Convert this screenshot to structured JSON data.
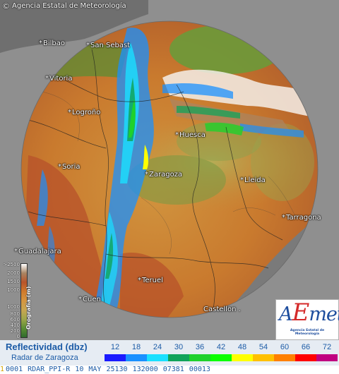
{
  "header": {
    "copyright_symbol": "©",
    "agency": "Agencia Estatal de Meteorología"
  },
  "cities": [
    {
      "key": "bilbao",
      "label": "Bilbao"
    },
    {
      "key": "san-sebastian",
      "label": "San Sebast"
    },
    {
      "key": "vitoria",
      "label": "Vitoria"
    },
    {
      "key": "logrono",
      "label": "Logroño"
    },
    {
      "key": "huesca",
      "label": "Huesca"
    },
    {
      "key": "soria",
      "label": "Soria"
    },
    {
      "key": "zaragoza",
      "label": "Zaragoza"
    },
    {
      "key": "lleida",
      "label": "Lleida"
    },
    {
      "key": "tarragona",
      "label": "Tarragona"
    },
    {
      "key": "guadalajara",
      "label": "Guadalajara"
    },
    {
      "key": "teruel",
      "label": "Teruel"
    },
    {
      "key": "cuenca",
      "label": "Cuen"
    },
    {
      "key": "castellon",
      "label": "Castellon ."
    }
  ],
  "altitude_legend": {
    "title": "Orografía (m)",
    "ticks": [
      ">2500",
      "2000",
      "1500",
      "1000",
      "800",
      "600",
      "400",
      "200",
      "0"
    ],
    "colors": [
      "#ffffff",
      "#a98563",
      "#b8542a",
      "#cf7a2c",
      "#d69540",
      "#c9a651",
      "#9fa64a",
      "#5c8e34",
      "#2f6b2d"
    ]
  },
  "logo": {
    "wordmark_a": "A",
    "wordmark_e": "E",
    "wordmark_rest": "met",
    "subtitle": "Agencia Estatal de Meteorología"
  },
  "reflectivity_legend": {
    "title": "Reflectividad (dbz)",
    "subtitle": "Radar de Zaragoza",
    "levels": [
      {
        "value": "12",
        "color": "#1a1aff"
      },
      {
        "value": "18",
        "color": "#1990ff"
      },
      {
        "value": "24",
        "color": "#1ae0ff"
      },
      {
        "value": "30",
        "color": "#11a35a"
      },
      {
        "value": "36",
        "color": "#1fd12c"
      },
      {
        "value": "42",
        "color": "#0bff00"
      },
      {
        "value": "48",
        "color": "#ffff00"
      },
      {
        "value": "54",
        "color": "#ffc000"
      },
      {
        "value": "60",
        "color": "#ff8000"
      },
      {
        "value": "66",
        "color": "#ff0000"
      },
      {
        "value": "72",
        "color": "#c00080"
      }
    ]
  },
  "status": {
    "lead": "1",
    "id": "0001",
    "product": "RDAR_PPI-R",
    "day": "10",
    "month": "MAY",
    "code": "25130",
    "time": "132000",
    "extra": "07381",
    "tail": "00013"
  }
}
